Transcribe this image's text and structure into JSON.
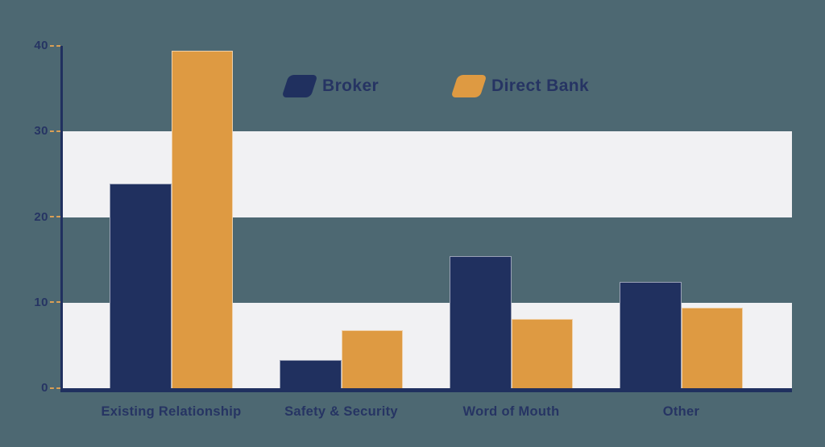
{
  "chart_data": {
    "type": "bar",
    "title": "",
    "categories": [
      "Existing Relationship",
      "Safety & Security",
      "Word of Mouth",
      "Other"
    ],
    "series": [
      {
        "name": "Broker",
        "color": "#20305f",
        "values": [
          23.9,
          3.3,
          15.4,
          12.4
        ]
      },
      {
        "name": "Direct Bank",
        "color": "#de9a42",
        "values": [
          39.4,
          6.8,
          8.1,
          9.4
        ]
      }
    ],
    "xlabel": "",
    "ylabel": "",
    "ylim": [
      0,
      40
    ],
    "yticks": [
      0,
      10,
      20,
      30,
      40
    ],
    "grid_bands": [
      [
        0,
        10
      ],
      [
        20,
        30
      ]
    ],
    "legend_position": "top-center"
  },
  "colors": {
    "background": "#4d6872",
    "band": "#f1f1f3",
    "axis": "#20305f",
    "text": "#263463",
    "tick_dash": "#db9f55"
  }
}
